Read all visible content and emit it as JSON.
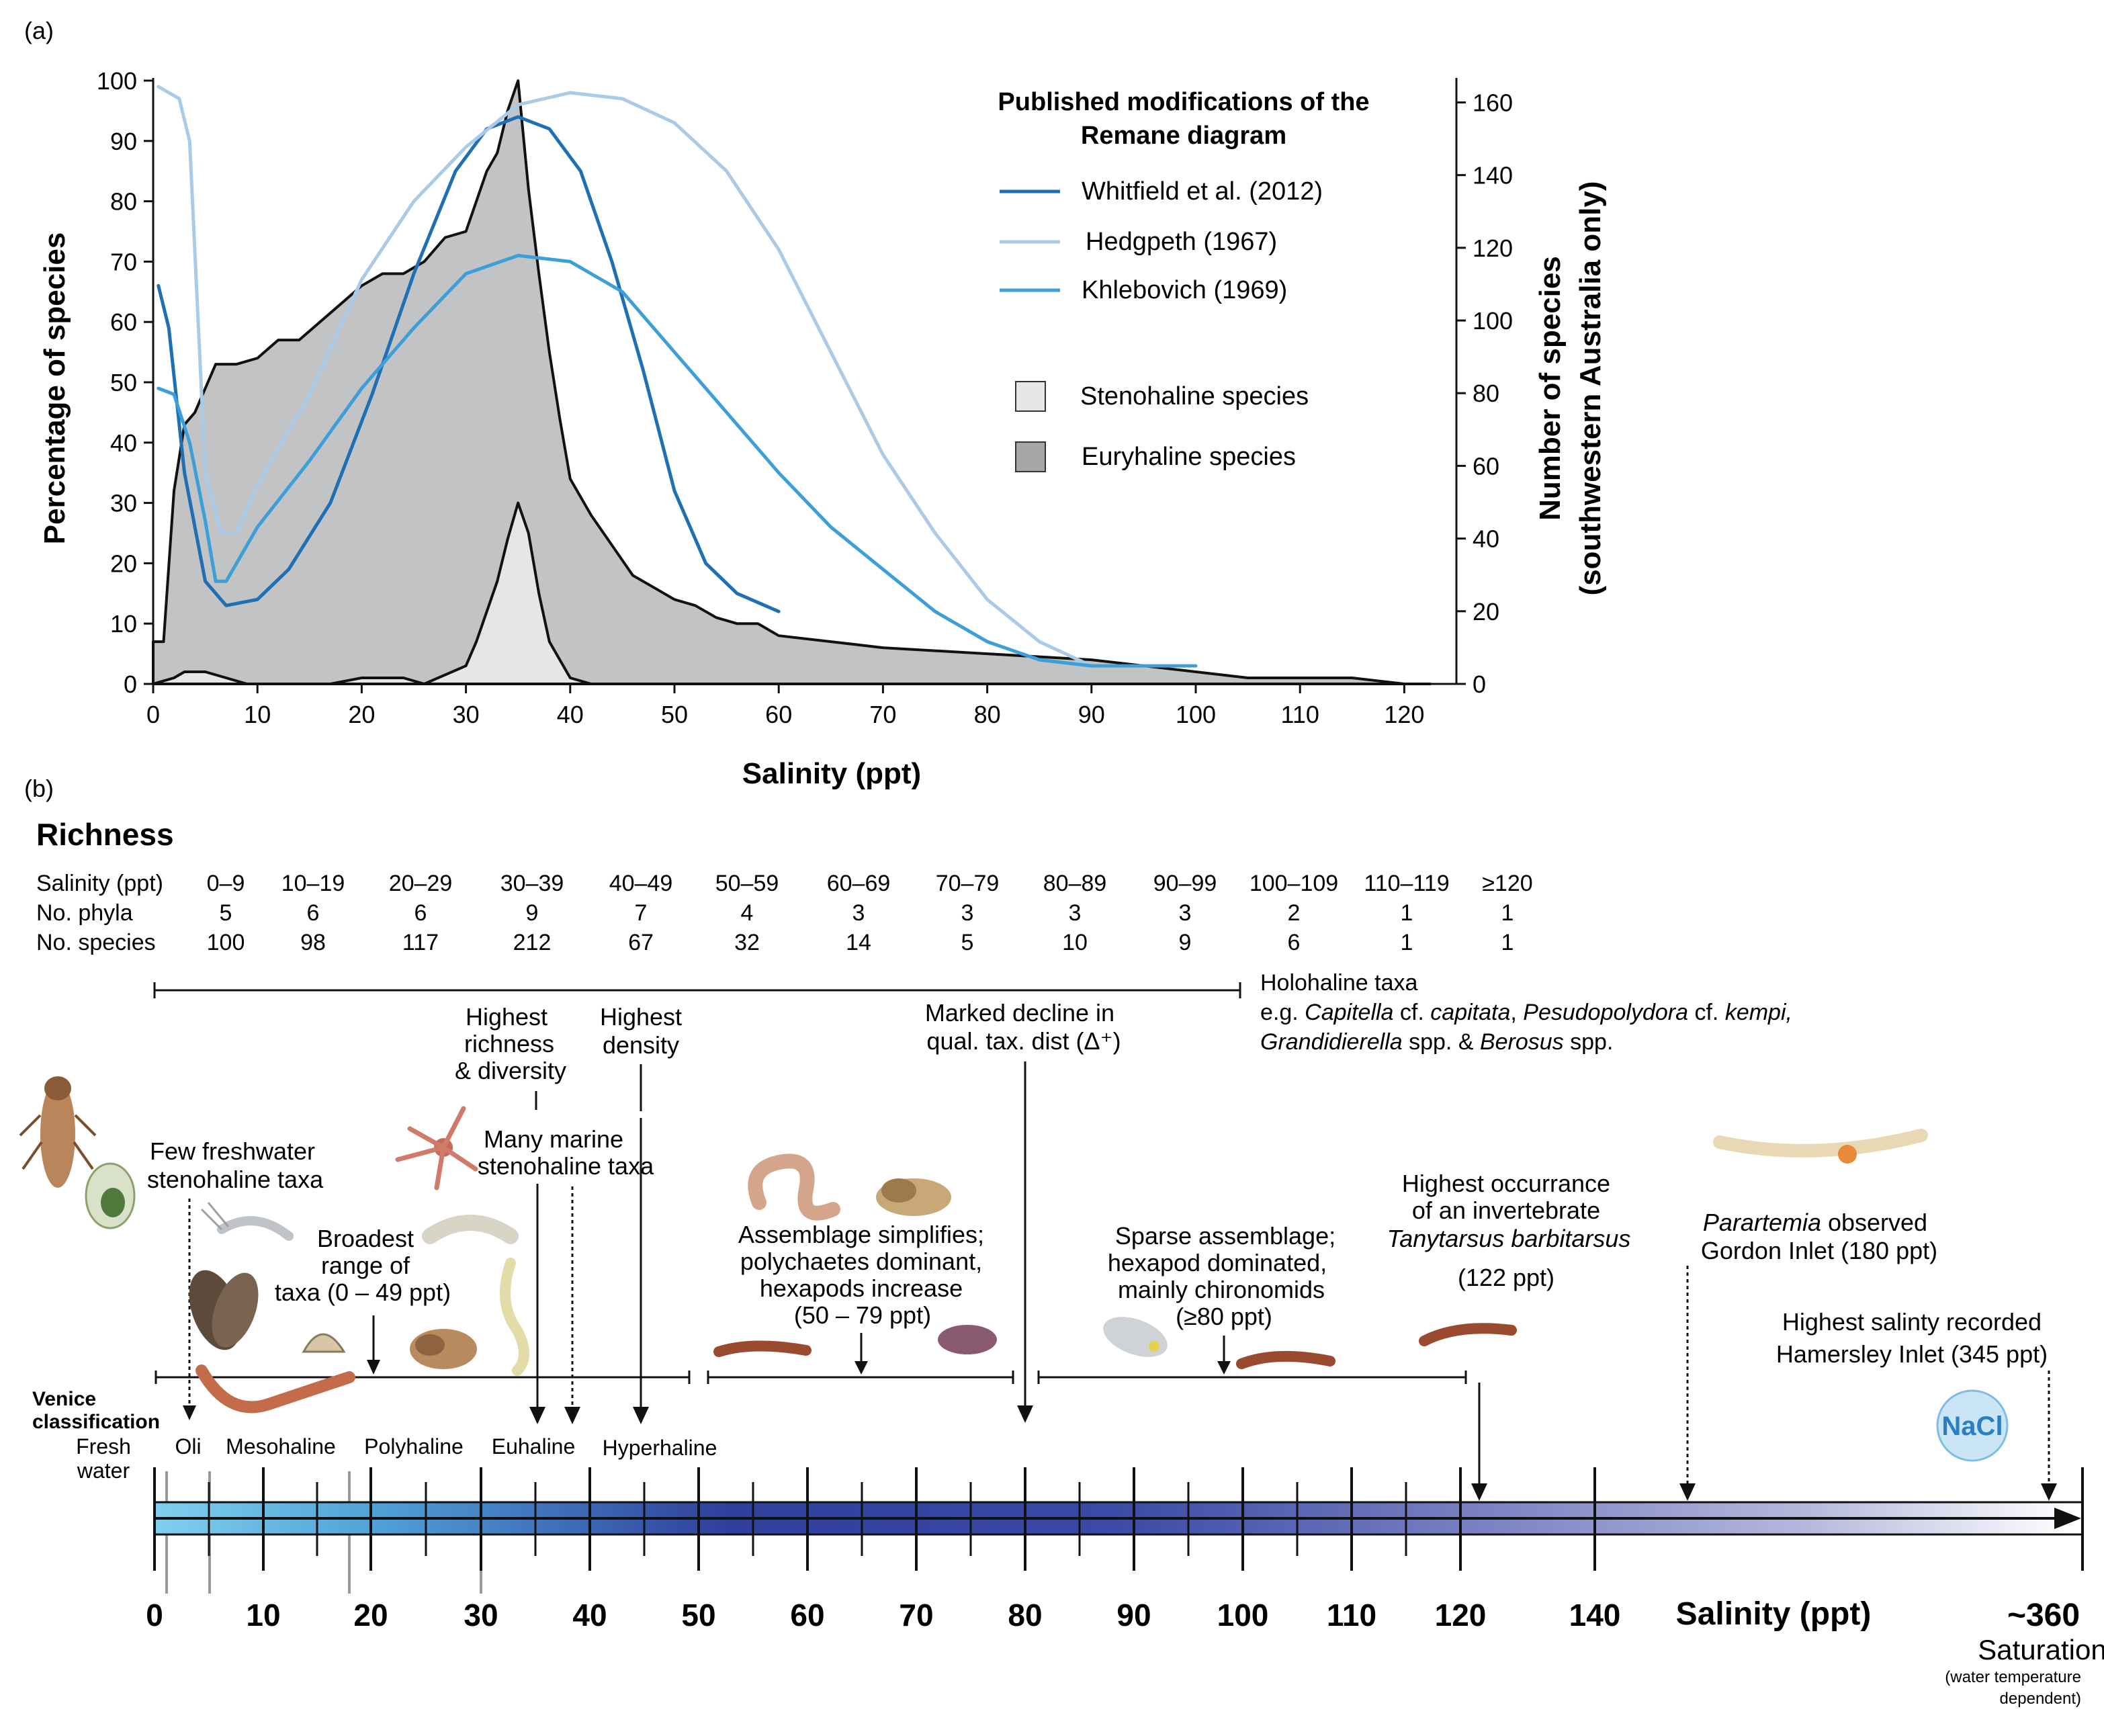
{
  "panel_labels": {
    "a": "(a)",
    "b": "(b)"
  },
  "colors": {
    "euryhaline_fill": "#c2c3c5",
    "stenohaline_fill": "#e6e6e6",
    "whitfield": "#1f6fb5",
    "hedgpeth": "#a9cbe8",
    "khlebovich": "#3d9fd8",
    "bar_start": "#7fd0ee",
    "bar_mid": "#2f3f9c",
    "bar_end": "#ffffff"
  },
  "chart_data": [
    {
      "type": "area",
      "title": "",
      "xlabel": "Salinity (ppt)",
      "ylabel": "Percentage of species",
      "y2label_line1": "Number of species",
      "y2label_line2": "(southwestern Australia only)",
      "xlim": [
        0,
        125
      ],
      "ylim": [
        0,
        100
      ],
      "y2lim": [
        0,
        166
      ],
      "x_ticks": [
        0,
        10,
        20,
        30,
        40,
        50,
        60,
        70,
        80,
        90,
        100,
        110,
        120
      ],
      "y_ticks": [
        0,
        10,
        20,
        30,
        40,
        50,
        60,
        70,
        80,
        90,
        100
      ],
      "y2_ticks": [
        0,
        20,
        40,
        60,
        80,
        100,
        120,
        140,
        160
      ],
      "legend_title_line1": "Published modifications of the",
      "legend_title_line2": "Remane diagram",
      "series": [
        {
          "name": "Whitfield et al. (2012)",
          "kind": "line",
          "color": "#1f6fb5",
          "x": [
            0.5,
            1.5,
            3,
            5,
            7,
            10,
            13,
            17,
            21,
            25,
            29,
            32,
            35,
            38,
            41,
            44,
            47,
            50,
            53,
            56,
            60
          ],
          "y": [
            66,
            59,
            35,
            17,
            13,
            14,
            19,
            30,
            48,
            68,
            85,
            92,
            94,
            92,
            85,
            70,
            52,
            32,
            20,
            15,
            12
          ]
        },
        {
          "name": "Hedgpeth (1967)",
          "kind": "line",
          "color": "#a9cbe8",
          "x": [
            0.5,
            2.5,
            3.5,
            5,
            6.5,
            8,
            10,
            15,
            20,
            25,
            30,
            35,
            40,
            45,
            50,
            55,
            60,
            65,
            70,
            75,
            80,
            85,
            90
          ],
          "y": [
            99,
            97,
            90,
            35,
            25,
            25,
            33,
            48,
            67,
            80,
            89,
            96,
            98,
            97,
            93,
            85,
            72,
            55,
            38,
            25,
            14,
            7,
            3
          ]
        },
        {
          "name": "Khlebovich (1969)",
          "kind": "line",
          "color": "#3d9fd8",
          "x": [
            0.5,
            2,
            3.5,
            5,
            6,
            7,
            8,
            10,
            15,
            20,
            25,
            30,
            35,
            40,
            45,
            50,
            55,
            60,
            65,
            70,
            75,
            80,
            85,
            90,
            95,
            100
          ],
          "y": [
            49,
            48,
            40,
            27,
            17,
            17,
            20,
            26,
            37,
            49,
            59,
            68,
            71,
            70,
            65,
            55,
            45,
            35,
            26,
            19,
            12,
            7,
            4,
            3,
            3,
            3
          ]
        },
        {
          "name": "Euryhaline species",
          "kind": "area",
          "color": "#c2c3c5",
          "x": [
            0,
            1,
            2,
            3,
            4,
            5,
            6,
            7,
            8,
            10,
            12,
            14,
            16,
            18,
            20,
            22,
            24,
            26,
            28,
            30,
            32,
            33,
            34,
            35,
            36,
            37,
            38,
            39,
            40,
            42,
            44,
            46,
            48,
            50,
            52,
            54,
            56,
            58,
            60,
            65,
            70,
            80,
            90,
            100,
            105,
            110,
            115,
            120,
            122.5
          ],
          "y": [
            7,
            7,
            32,
            43,
            45,
            49,
            53,
            53,
            53,
            54,
            57,
            57,
            60,
            63,
            66,
            68,
            68,
            70,
            74,
            75,
            85,
            88,
            95,
            100,
            82,
            68,
            55,
            44,
            34,
            28,
            23,
            18,
            16,
            14,
            13,
            11,
            10,
            10,
            8,
            7,
            6,
            5,
            4,
            2,
            1,
            1,
            1,
            0,
            0
          ]
        },
        {
          "name": "Stenohaline species",
          "kind": "area",
          "color": "#e6e6e6",
          "x": [
            0,
            2,
            3,
            5,
            7,
            9,
            10,
            17,
            20,
            24,
            26,
            30,
            31,
            33,
            34,
            35,
            36,
            37,
            38,
            40,
            42,
            44
          ],
          "y": [
            0,
            1,
            2,
            2,
            1,
            0,
            0,
            0,
            1,
            1,
            0,
            3,
            7,
            17,
            24,
            30,
            25,
            15,
            7,
            1,
            0,
            0
          ]
        }
      ]
    },
    {
      "type": "table",
      "title": "Richness",
      "row_labels": [
        "Salinity (ppt)",
        "No. phyla",
        "No. species"
      ],
      "columns": [
        "0–9",
        "10–19",
        "20–29",
        "30–39",
        "40–49",
        "50–59",
        "60–69",
        "70–79",
        "80–89",
        "90–99",
        "100–109",
        "110–119",
        "≥120"
      ],
      "phyla": [
        "5",
        "6",
        "6",
        "9",
        "7",
        "4",
        "3",
        "3",
        "3",
        "3",
        "2",
        "1",
        "1"
      ],
      "species": [
        "100",
        "98",
        "117",
        "212",
        "67",
        "32",
        "14",
        "5",
        "10",
        "9",
        "6",
        "1",
        "1"
      ]
    }
  ],
  "annotations": {
    "holohaline_1": "Holohaline taxa",
    "holohaline_2": "e.g. Capitella cf. capitata, Pesudopolydora cf. kempi,",
    "holohaline_3": "Grandidierella spp. & Berosus spp.",
    "highest_richness_1": "Highest",
    "highest_richness_2": "richness",
    "highest_richness_3": "& diversity",
    "highest_density_1": "Highest",
    "highest_density_2": "density",
    "marked_decline_1": "Marked decline in",
    "marked_decline_2": "qual. tax. dist (Δ⁺)",
    "few_freshwater_1": "Few freshwater",
    "few_freshwater_2": "stenohaline taxa",
    "many_marine_1": "Many marine",
    "many_marine_2": "stenohaline  taxa",
    "broadest_1": "Broadest",
    "broadest_2": "range of",
    "broadest_3": "taxa (0 – 49 ppt)",
    "assemblage_1": "Assemblage simplifies;",
    "assemblage_2": "polychaetes dominant,",
    "assemblage_3": "hexapods increase",
    "assemblage_4": "(50 – 79 ppt)",
    "sparse_1": "Sparse assemblage;",
    "sparse_2": "hexapod dominated,",
    "sparse_3": "mainly chironomids",
    "sparse_4": "(≥80 ppt)",
    "tanytarsus_1": "Highest occurrance",
    "tanytarsus_2": "of an invertebrate",
    "tanytarsus_3": "Tanytarsus barbitarsus",
    "tanytarsus_4": "(122 ppt)",
    "parartemia_1": "Parartemia observed",
    "parartemia_2": "Gordon Inlet (180 ppt)",
    "hamersley_1": "Highest salinty  recorded",
    "hamersley_2": "Hamersley Inlet (345 ppt)",
    "nacl": "NaCl"
  },
  "venice": {
    "title_1": "Venice",
    "title_2": "classification",
    "fresh_1": "Fresh",
    "fresh_2": "water",
    "classes": [
      "Oli",
      "Mesohaline",
      "Polyhaline",
      "Euhaline",
      "Hyperhaline"
    ]
  },
  "scale": {
    "ticks": [
      "0",
      "10",
      "20",
      "30",
      "40",
      "50",
      "60",
      "70",
      "80",
      "90",
      "100",
      "110",
      "120",
      "140"
    ],
    "label": "Salinity (ppt)",
    "end_value": "~360",
    "end_label": "Saturation",
    "end_note_1": "(water temperature",
    "end_note_2": "dependent)"
  }
}
